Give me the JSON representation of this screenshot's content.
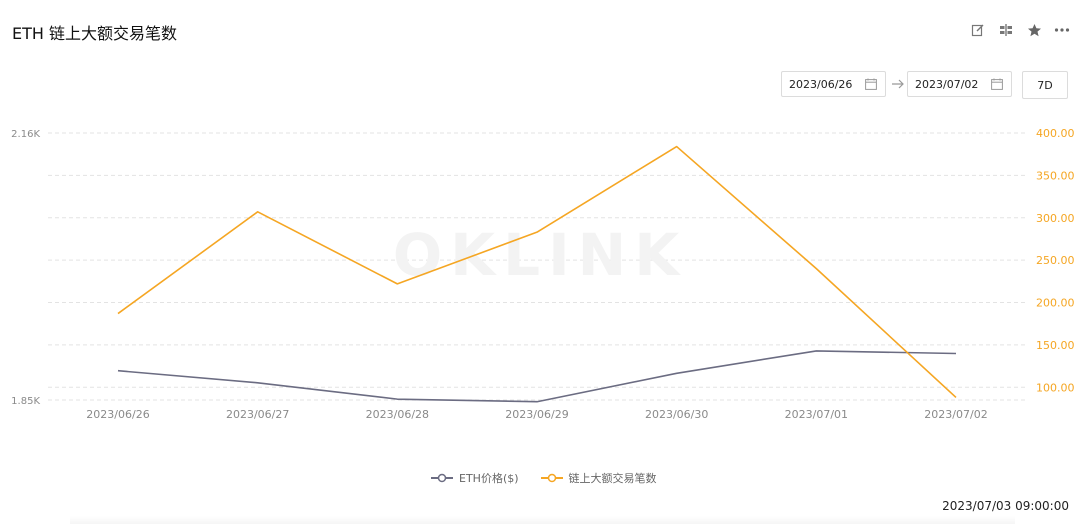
{
  "header": {
    "title": "ETH 链上大额交易笔数"
  },
  "toolbar": {
    "icons": [
      "edit-icon",
      "compare-icon",
      "star-icon",
      "more-icon"
    ]
  },
  "date_range": {
    "start": "2023/06/26",
    "end": "2023/07/02",
    "range_button": "7D"
  },
  "footer": {
    "timestamp": "2023/07/03 09:00:00"
  },
  "colors": {
    "eth_price": "#6b6c82",
    "large_tx": "#f5a623",
    "grid": "#e3e3e3",
    "axis_text": "#8a8a8a"
  },
  "chart_data": {
    "type": "line",
    "categories": [
      "2023/06/26",
      "2023/06/27",
      "2023/06/28",
      "2023/06/29",
      "2023/06/30",
      "2023/07/01",
      "2023/07/02"
    ],
    "series": [
      {
        "name": "ETH价格($)",
        "axis": "left",
        "values": [
          1884,
          1870,
          1851,
          1848,
          1881,
          1907,
          1904
        ]
      },
      {
        "name": "链上大额交易笔数",
        "axis": "right",
        "values": [
          187,
          307,
          222,
          283,
          384,
          240,
          88
        ]
      }
    ],
    "left_axis": {
      "ylim": [
        1850,
        2160
      ],
      "tick_labels": [
        "1.85K",
        "2.16K"
      ]
    },
    "right_axis": {
      "ylim": [
        85,
        400
      ],
      "ticks": [
        100,
        150,
        200,
        250,
        300,
        350,
        400
      ],
      "tick_labels": [
        "100.00",
        "150.00",
        "200.00",
        "250.00",
        "300.00",
        "350.00",
        "400.00"
      ]
    },
    "grid": true,
    "legend_position": "bottom-center"
  }
}
